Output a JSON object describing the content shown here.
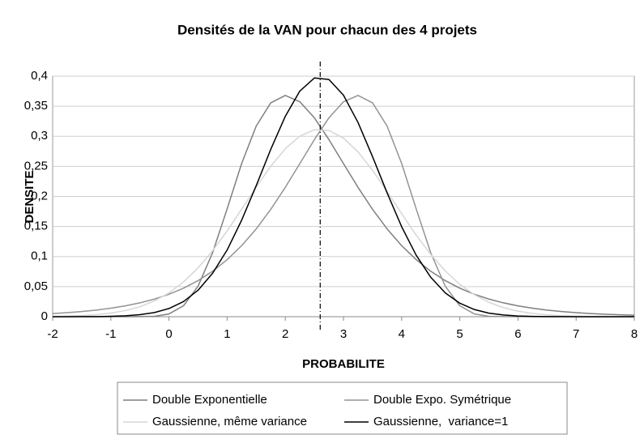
{
  "chart_data": {
    "type": "line",
    "title": "Densités de la VAN pour chacun des 4 projets",
    "xlabel": "PROBABILITE",
    "ylabel": "DENSITE",
    "x": [
      -2,
      -1.75,
      -1.5,
      -1.25,
      -1,
      -0.75,
      -0.5,
      -0.25,
      0,
      0.25,
      0.5,
      0.75,
      1,
      1.25,
      1.5,
      1.75,
      2,
      2.25,
      2.5,
      2.75,
      3,
      3.25,
      3.5,
      3.75,
      4,
      4.25,
      4.5,
      4.75,
      5,
      5.25,
      5.5,
      5.75,
      6,
      6.25,
      6.5,
      6.75,
      7,
      7.25,
      7.5,
      7.75,
      8
    ],
    "series": [
      {
        "name": "Double Exponentielle",
        "color": "#7f7f7f",
        "values": [
          0,
          0,
          0,
          0,
          0,
          0,
          0.0001,
          0.0007,
          0.0046,
          0.0182,
          0.0507,
          0.1064,
          0.1794,
          0.2549,
          0.317,
          0.3556,
          0.3679,
          0.3574,
          0.3307,
          0.2945,
          0.2546,
          0.2151,
          0.1785,
          0.146,
          0.1182,
          0.0949,
          0.0756,
          0.06,
          0.0474,
          0.0373,
          0.0293,
          0.023,
          0.018,
          0.0141,
          0.011,
          0.0086,
          0.0067,
          0.0052,
          0.0041,
          0.0032,
          0.0025
        ]
      },
      {
        "name": "Double Expo. Symétrique",
        "color": "#939393",
        "values": [
          0.0052,
          0.0067,
          0.0086,
          0.011,
          0.0141,
          0.018,
          0.023,
          0.0293,
          0.0373,
          0.0474,
          0.06,
          0.0756,
          0.0949,
          0.1182,
          0.146,
          0.1785,
          0.2151,
          0.2546,
          0.2945,
          0.3307,
          0.3574,
          0.3679,
          0.3556,
          0.317,
          0.2549,
          0.1794,
          0.1064,
          0.0507,
          0.0182,
          0.0046,
          0.0007,
          0.0001,
          0,
          0,
          0,
          0,
          0,
          0,
          0,
          0,
          0
        ]
      },
      {
        "name": "Gaussienne, même variance",
        "color": "#d6d6d6",
        "values": [
          0.0005,
          0.001,
          0.0018,
          0.0034,
          0.006,
          0.0102,
          0.0166,
          0.0262,
          0.0396,
          0.0578,
          0.0811,
          0.1097,
          0.1427,
          0.179,
          0.2155,
          0.2502,
          0.2793,
          0.3003,
          0.3108,
          0.3096,
          0.2969,
          0.274,
          0.2434,
          0.2082,
          0.1714,
          0.1358,
          0.1036,
          0.0761,
          0.0537,
          0.0366,
          0.0239,
          0.0151,
          0.0092,
          0.0054,
          0.003,
          0.0016,
          0.0008,
          0.0004,
          0.0002,
          0.0001,
          0
        ]
      },
      {
        "name": "Gaussienne,  variance=1",
        "color": "#000000",
        "values": [
          0,
          0,
          0.0001,
          0.0002,
          0.0006,
          0.0015,
          0.0033,
          0.0069,
          0.0136,
          0.0252,
          0.044,
          0.0722,
          0.1109,
          0.1606,
          0.2179,
          0.2783,
          0.3332,
          0.3752,
          0.3969,
          0.3945,
          0.3683,
          0.323,
          0.2661,
          0.206,
          0.1497,
          0.1023,
          0.0656,
          0.0396,
          0.0224,
          0.0119,
          0.0059,
          0.0028,
          0.0012,
          0.0005,
          0.0002,
          0.0001,
          0,
          0,
          0,
          0,
          0
        ]
      }
    ],
    "vline": 2.6,
    "xlim": [
      -2,
      8
    ],
    "xticks": [
      -2,
      -1,
      0,
      1,
      2,
      3,
      4,
      5,
      6,
      7,
      8
    ],
    "ylim": [
      0,
      0.4
    ],
    "yticks": [
      0,
      {
        "value": 0.05,
        "label": "0,05"
      },
      {
        "value": 0.1,
        "label": "0,1"
      },
      {
        "value": 0.15,
        "label": "0,15"
      },
      {
        "value": 0.2,
        "label": "0,2"
      },
      {
        "value": 0.25,
        "label": "0,25"
      },
      {
        "value": 0.3,
        "label": "0,3"
      },
      {
        "value": 0.35,
        "label": "0,35"
      },
      {
        "value": 0.4,
        "label": "0,4"
      }
    ],
    "grid": true,
    "legend": "bottom"
  }
}
